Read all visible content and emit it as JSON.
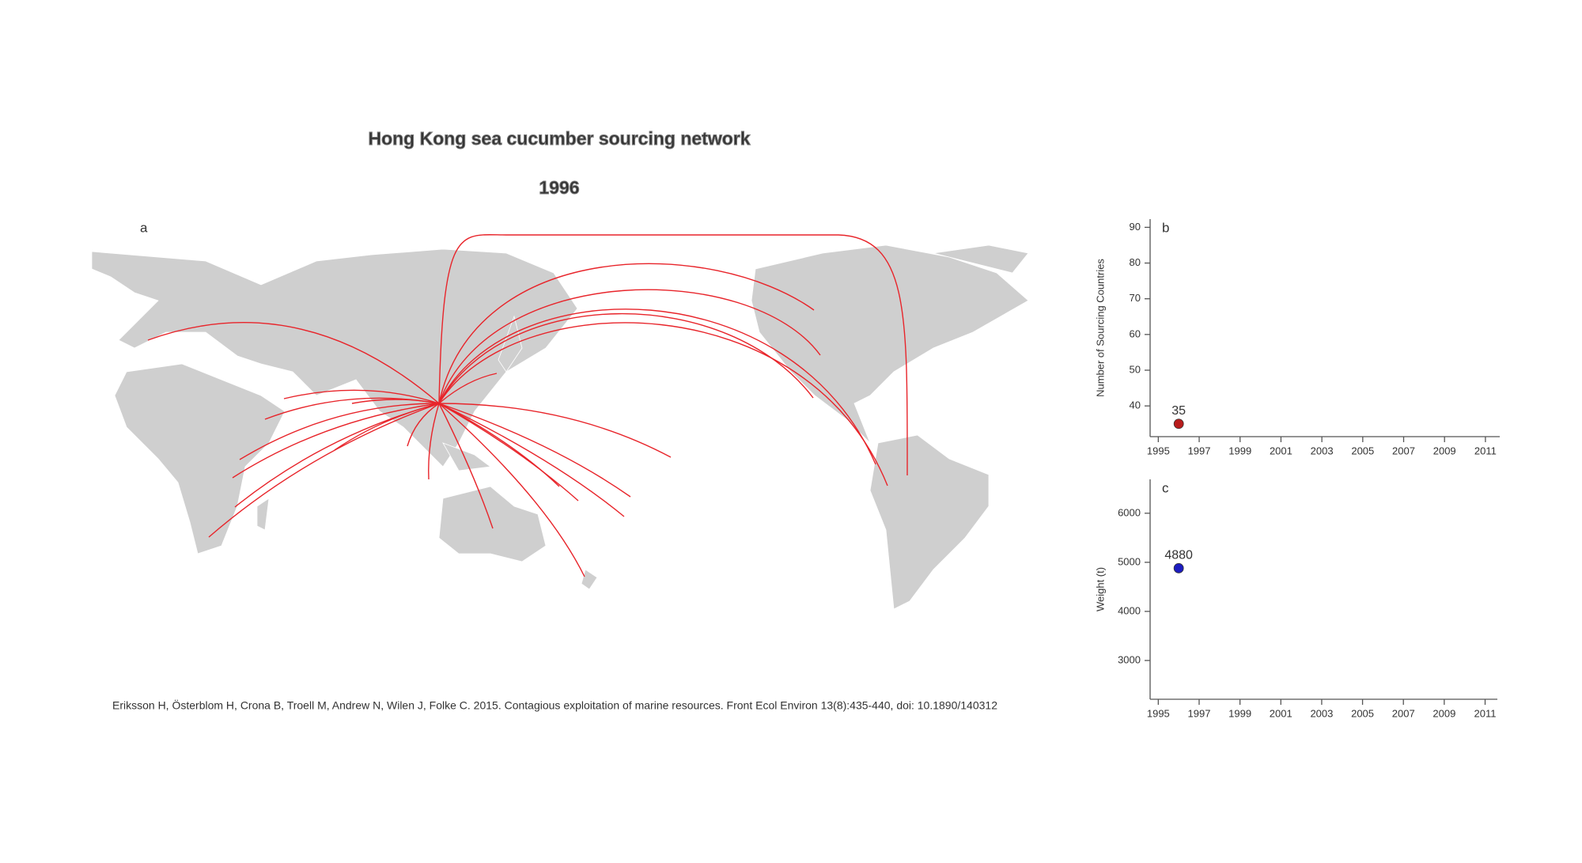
{
  "title": "Hong Kong sea cucumber sourcing network",
  "subtitle": "1996",
  "map_panel_label": "a",
  "citation": "Eriksson H, Österblom H, Crona B, Troell M, Andrew N, Wilen J, Folke C. 2015. Contagious exploitation of marine resources. Front Ecol Environ 13(8):435-440, doi: 10.1890/140312",
  "chart_data": [
    {
      "type": "scatter",
      "panel_label": "b",
      "y_label": "Number of Sourcing Countries",
      "x": [
        1996
      ],
      "values": [
        35
      ],
      "color": "#b81c1c",
      "xlim": [
        1994.6,
        2011.7
      ],
      "xticks": [
        1995,
        1997,
        1999,
        2001,
        2003,
        2005,
        2007,
        2009,
        2011
      ],
      "ylim": [
        31.4,
        92.3
      ],
      "yticks": [
        40,
        50,
        60,
        70,
        80,
        90
      ]
    },
    {
      "type": "scatter",
      "panel_label": "c",
      "y_label": "Weight (t)",
      "x": [
        1996
      ],
      "values": [
        4880
      ],
      "color": "#1c1cc0",
      "xlim": [
        1994.6,
        2011.6
      ],
      "xticks": [
        1995,
        1997,
        1999,
        2001,
        2003,
        2005,
        2007,
        2009,
        2011
      ],
      "ylim": [
        2210,
        6690
      ],
      "yticks": [
        3000,
        4000,
        5000,
        6000
      ]
    }
  ]
}
